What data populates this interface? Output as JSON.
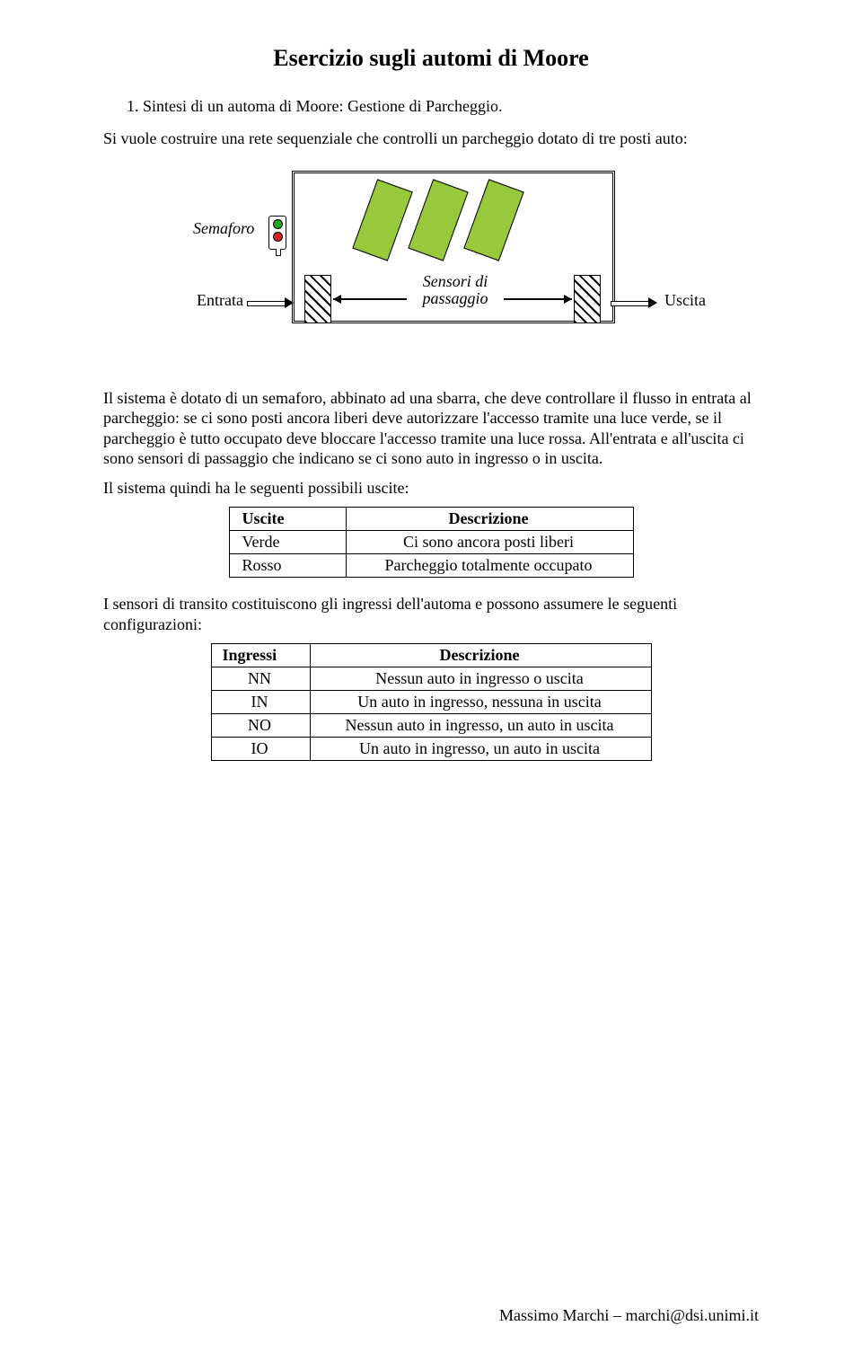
{
  "title": "Esercizio sugli automi di Moore",
  "subtitle": "1. Sintesi di un automa di Moore: Gestione di Parcheggio.",
  "intro": "Si vuole costruire una rete sequenziale che controlli un parcheggio dotato di tre posti auto:",
  "diagram": {
    "semaforo": "Semaforo",
    "entrata": "Entrata",
    "sensori_line1": "Sensori di",
    "sensori_line2": "passaggio",
    "uscita": "Uscita",
    "slot_fill": "#98c83c",
    "light_green": "#1fa81f",
    "light_red": "#d82020"
  },
  "body1": "Il sistema è dotato di un semaforo, abbinato ad una sbarra, che deve controllare il flusso in entrata al parcheggio: se ci sono posti ancora liberi deve autorizzare l'accesso tramite una luce verde, se il parcheggio è tutto occupato deve bloccare l'accesso tramite una luce rossa. All'entrata e all'uscita ci sono sensori di passaggio che indicano se ci sono auto in ingresso o in uscita.",
  "body2": "Il sistema quindi ha le seguenti possibili uscite:",
  "uscite_table": {
    "columns": [
      "Uscite",
      "Descrizione"
    ],
    "rows": [
      [
        "Verde",
        "Ci sono ancora posti liberi"
      ],
      [
        "Rosso",
        "Parcheggio totalmente occupato"
      ]
    ]
  },
  "body3": "I sensori di transito costituiscono gli ingressi dell'automa e possono assumere le seguenti configurazioni:",
  "ingressi_table": {
    "columns": [
      "Ingressi",
      "Descrizione"
    ],
    "rows": [
      [
        "NN",
        "Nessun auto in ingresso o uscita"
      ],
      [
        "IN",
        "Un auto in ingresso, nessuna in uscita"
      ],
      [
        "NO",
        "Nessun auto in ingresso, un auto in uscita"
      ],
      [
        "IO",
        "Un auto in ingresso, un auto in uscita"
      ]
    ]
  },
  "footer": "Massimo Marchi – marchi@dsi.unimi.it"
}
